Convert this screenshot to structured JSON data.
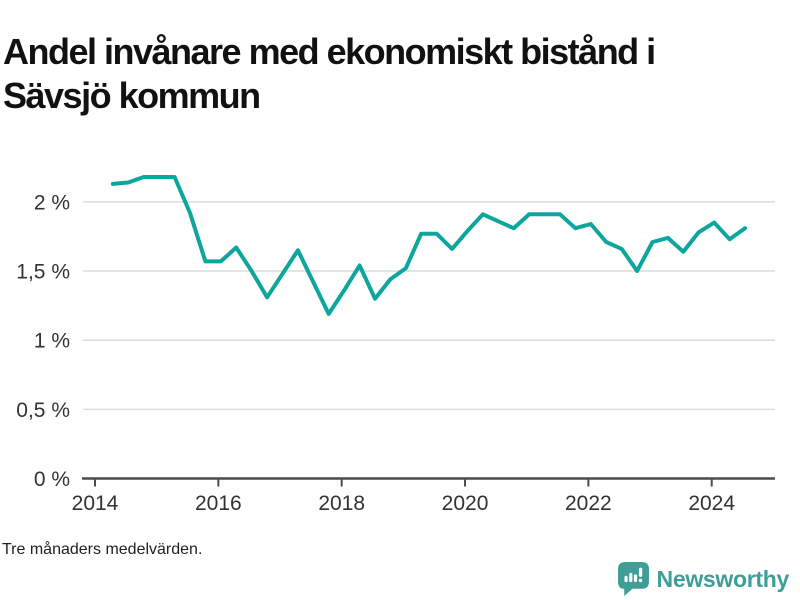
{
  "title": "Andel invånare med ekonomiskt bistånd i Sävsjö kommun",
  "title_lines": [
    "Andel invånare med ekonomiskt bistånd i",
    "Sävsjö kommun"
  ],
  "footnote": "Tre månaders medelvärden.",
  "brand": {
    "name": "Newsworthy",
    "icon": "newsworthy-bar-chart-bubble-icon",
    "color": "#3f9e98"
  },
  "colors": {
    "line": "#0ca69d",
    "grid": "#dcdcdc",
    "axis": "#4c4c4c",
    "tick_label": "#333333"
  },
  "chart_data": {
    "type": "line",
    "title": "Andel invånare med ekonomiskt bistånd i Sävsjö kommun",
    "footnote": "Tre månaders medelvärden.",
    "unit": "%",
    "grid": "horizontal",
    "legend": "none",
    "xlim": [
      2013.8,
      2025.03
    ],
    "ylim": [
      0,
      2.3
    ],
    "x_ticks": [
      2014,
      2016,
      2018,
      2020,
      2022,
      2024
    ],
    "y_ticks": [
      {
        "v": 0,
        "label": "0 %"
      },
      {
        "v": 0.5,
        "label": "0,5 %"
      },
      {
        "v": 1,
        "label": "1 %"
      },
      {
        "v": 1.5,
        "label": "1,5 %"
      },
      {
        "v": 2,
        "label": "2 %"
      }
    ],
    "series": [
      {
        "name": "Andel invånare med ekonomiskt bistånd (%)",
        "x": [
          2014.29,
          2014.54,
          2014.79,
          2015.04,
          2015.29,
          2015.54,
          2015.79,
          2016.04,
          2016.29,
          2016.54,
          2016.79,
          2017.04,
          2017.29,
          2017.54,
          2017.79,
          2018.04,
          2018.29,
          2018.54,
          2018.79,
          2019.04,
          2019.29,
          2019.54,
          2019.79,
          2020.04,
          2020.29,
          2020.54,
          2020.79,
          2021.04,
          2021.29,
          2021.54,
          2021.79,
          2022.04,
          2022.29,
          2022.54,
          2022.79,
          2023.04,
          2023.29,
          2023.54,
          2023.79,
          2024.04,
          2024.29,
          2024.54
        ],
        "values": [
          2.13,
          2.14,
          2.18,
          2.18,
          2.18,
          1.92,
          1.57,
          1.57,
          1.67,
          1.5,
          1.31,
          1.48,
          1.65,
          1.42,
          1.19,
          1.36,
          1.54,
          1.3,
          1.44,
          1.52,
          1.77,
          1.77,
          1.66,
          1.79,
          1.91,
          1.86,
          1.81,
          1.91,
          1.91,
          1.91,
          1.81,
          1.84,
          1.71,
          1.66,
          1.5,
          1.71,
          1.74,
          1.64,
          1.78,
          1.85,
          1.73,
          1.81
        ]
      }
    ]
  }
}
